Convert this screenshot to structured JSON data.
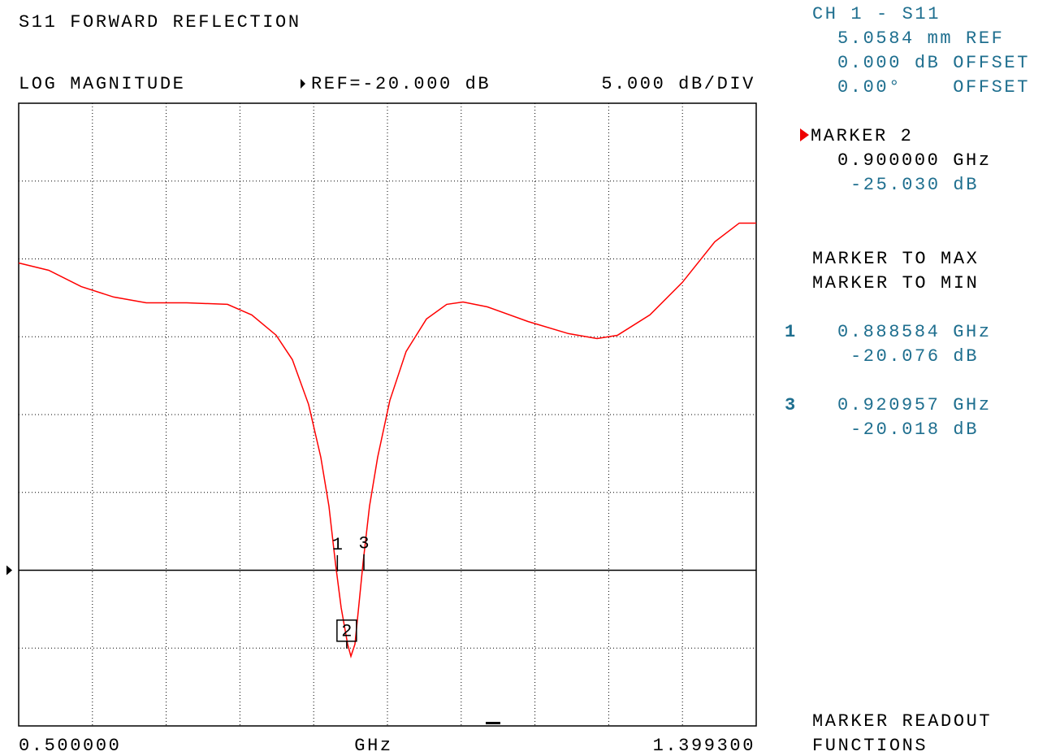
{
  "chart_data": {
    "type": "line",
    "title": "S11 FORWARD REFLECTION",
    "display_format": "LOG MAGNITUDE",
    "reference": {
      "label": "REF=-20.000 dB",
      "value": -20
    },
    "scale_label": "5.000 dB/DIV",
    "x_label": "GHz",
    "color": "#ff0000",
    "x": [
      0.5,
      0.5366,
      0.5763,
      0.6159,
      0.6555,
      0.705,
      0.7546,
      0.7842,
      0.8139,
      0.8337,
      0.8535,
      0.8684,
      0.8783,
      0.8862,
      0.8932,
      0.9011,
      0.9051,
      0.91,
      0.915,
      0.9199,
      0.9278,
      0.9377,
      0.9526,
      0.9724,
      0.9972,
      1.0219,
      1.0418,
      1.0715,
      1.121,
      1.1705,
      1.2052,
      1.23,
      1.2696,
      1.3092,
      1.3488,
      1.3786,
      1.3993
    ],
    "values": [
      -0.26,
      -0.73,
      -1.78,
      -2.45,
      -2.82,
      -2.82,
      -2.92,
      -3.6,
      -4.9,
      -6.47,
      -9.35,
      -12.74,
      -15.88,
      -19.53,
      -22.4,
      -24.75,
      -25.53,
      -24.75,
      -22.14,
      -19.53,
      -15.88,
      -12.74,
      -9.09,
      -5.95,
      -3.86,
      -2.92,
      -2.77,
      -3.08,
      -4.02,
      -4.8,
      -5.12,
      -4.91,
      -3.6,
      -1.51,
      1.1,
      2.3,
      2.3
    ],
    "xlim": [
      0.5,
      1.3993
    ],
    "ylim": [
      -30,
      10
    ],
    "xticks": [
      {
        "value": 0.5,
        "label": "0.500000"
      },
      0.58993,
      0.67986,
      0.76979,
      0.85972,
      0.94965,
      1.03958,
      1.12951,
      1.21944,
      1.30937,
      {
        "value": 1.3993,
        "label": "1.399300"
      }
    ],
    "yticks": [
      -30,
      -25,
      -20,
      -15,
      -10,
      -5,
      0,
      5,
      10
    ],
    "grid": true,
    "markers": [
      {
        "name": "1",
        "x": 0.888584,
        "value": -20.076,
        "x_label": "0.888584 GHz",
        "value_label": "-20.076 dB"
      },
      {
        "name": "2",
        "x": 0.9,
        "value": -25.03,
        "x_label": "0.900000 GHz",
        "value_label": "-25.030 dB"
      },
      {
        "name": "3",
        "x": 0.920957,
        "value": -20.018,
        "x_label": "0.920957 GHz",
        "value_label": "-20.018 dB"
      }
    ]
  },
  "side_panel": {
    "channel": "CH 1 - S11",
    "ref_plane": "5.0584 mm REF",
    "magnitude_offset": "0.000 dB OFFSET",
    "phase_offset": "0.00°    OFFSET",
    "active_marker": "MARKER 2",
    "functions": [
      "MARKER TO MAX",
      "MARKER TO MIN"
    ],
    "footer": [
      "MARKER READOUT",
      "FUNCTIONS"
    ]
  }
}
